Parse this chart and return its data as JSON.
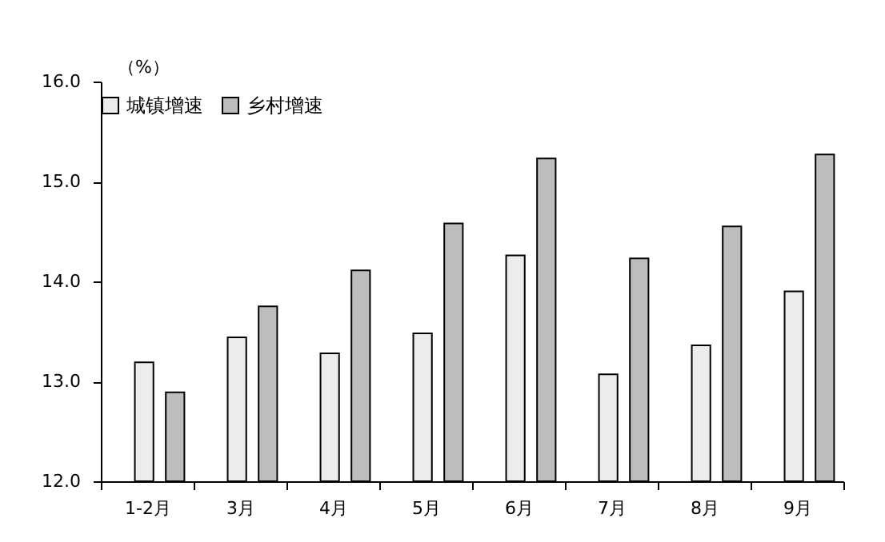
{
  "chart_data": {
    "type": "bar",
    "ylabel": "（%）",
    "categories": [
      "1-2月",
      "3月",
      "4月",
      "5月",
      "6月",
      "7月",
      "8月",
      "9月"
    ],
    "series": [
      {
        "name": "城镇增速",
        "color": "#ececec",
        "values": [
          13.19,
          13.44,
          13.28,
          13.48,
          14.26,
          13.07,
          13.36,
          13.9
        ]
      },
      {
        "name": "乡村增速",
        "color": "#bdbdbd",
        "values": [
          12.89,
          13.75,
          14.11,
          14.58,
          15.23,
          14.23,
          14.55,
          15.27
        ]
      }
    ],
    "ylim": [
      12,
      16
    ],
    "yticks": [
      {
        "value": 12,
        "label": "12.0"
      },
      {
        "value": 13,
        "label": "13.0"
      },
      {
        "value": 14,
        "label": "14.0"
      },
      {
        "value": 15,
        "label": "15.0"
      },
      {
        "value": 16,
        "label": "16.0"
      }
    ],
    "grid": false,
    "legend": "top"
  }
}
